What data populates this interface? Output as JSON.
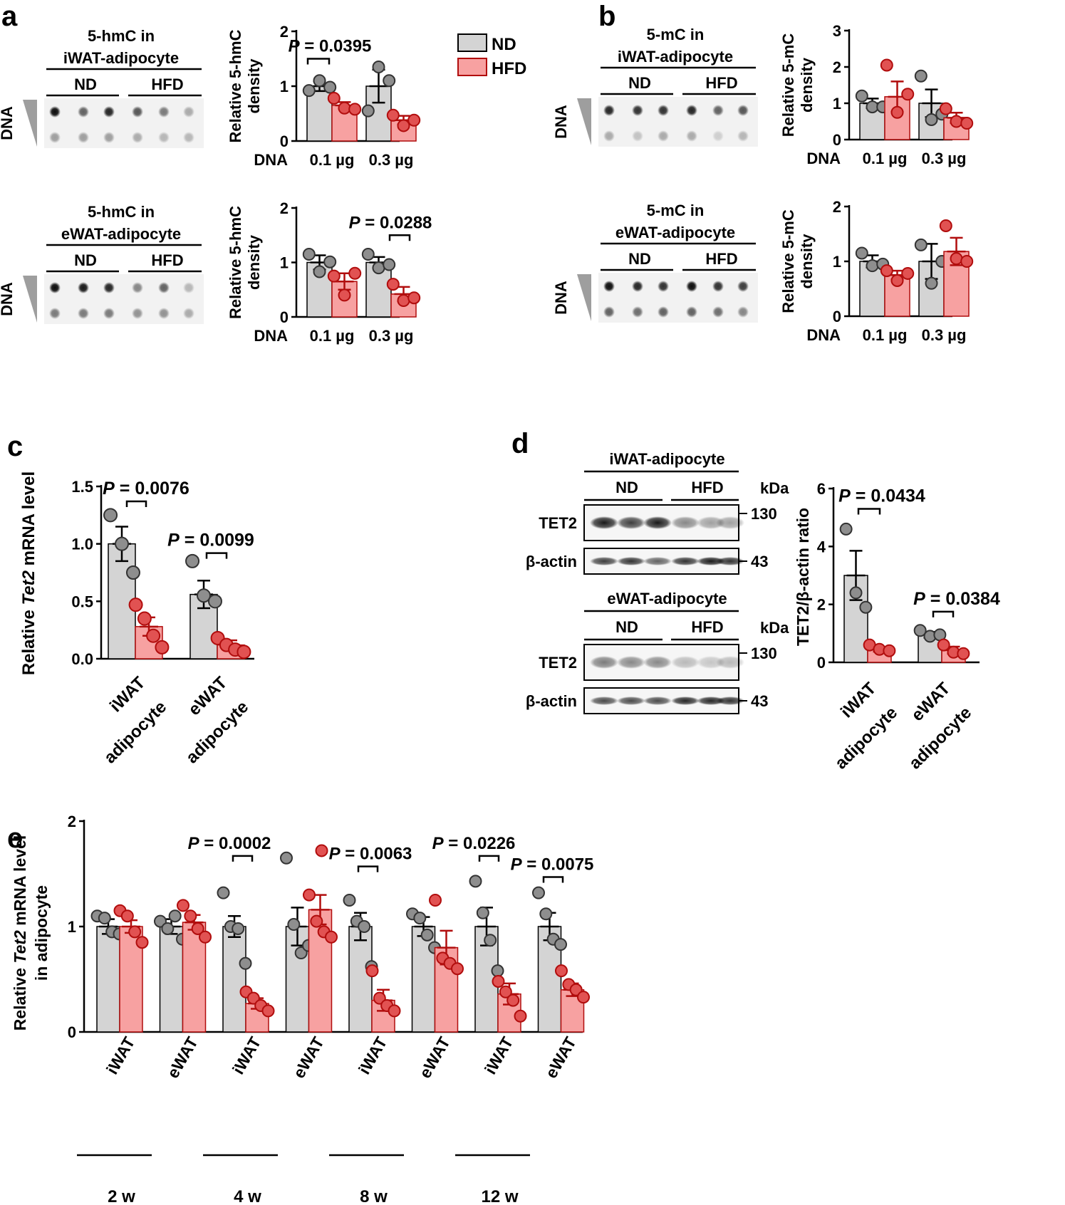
{
  "colors": {
    "nd_fill": "#d4d4d4",
    "nd_point": "#8e8e8e",
    "hfd_fill": "#f7a1a1",
    "hfd_point": "#e15252",
    "hfd_edge": "#b10d0d",
    "axis": "#000000"
  },
  "legend": {
    "nd": "ND",
    "hfd": "HFD"
  },
  "panel_labels": {
    "a": "a",
    "b": "b",
    "c": "c",
    "d": "d",
    "e": "e"
  },
  "blots": {
    "a_top": {
      "title_line1": "5-hmC in",
      "title_line2": "iWAT-adipocyte",
      "group1": "ND",
      "group2": "HFD",
      "side_label": "DNA"
    },
    "a_bottom": {
      "title_line1": "5-hmC in",
      "title_line2": "eWAT-adipocyte",
      "group1": "ND",
      "group2": "HFD",
      "side_label": "DNA"
    },
    "b_top": {
      "title_line1": "5-mC in",
      "title_line2": "iWAT-adipocyte",
      "group1": "ND",
      "group2": "HFD",
      "side_label": "DNA"
    },
    "b_bottom": {
      "title_line1": "5-mC in",
      "title_line2": "eWAT-adipocyte",
      "group1": "ND",
      "group2": "HFD",
      "side_label": "DNA"
    }
  },
  "western": {
    "iwat": {
      "title": "iWAT-adipocyte",
      "group1": "ND",
      "group2": "HFD",
      "kda": "kDa",
      "band1": "TET2",
      "band2": "β-actin",
      "mw1": "130",
      "mw2": "43"
    },
    "ewat": {
      "title": "eWAT-adipocyte",
      "group1": "ND",
      "group2": "HFD",
      "kda": "kDa",
      "band1": "TET2",
      "band2": "β-actin",
      "mw1": "130",
      "mw2": "43"
    }
  },
  "chart_data": [
    {
      "id": "a_top",
      "type": "bar",
      "ylabel_line1": "Relative 5-hmC",
      "ylabel_line2": "density",
      "xprefix": "DNA",
      "categories": [
        "0.1 µg",
        "0.3 µg"
      ],
      "ylim": [
        0,
        2
      ],
      "yticks": [
        "0",
        "1",
        "2"
      ],
      "series": [
        {
          "name": "ND",
          "values": [
            1.0,
            1.0
          ],
          "errors": [
            0.09,
            0.3
          ],
          "points": [
            [
              0.92,
              1.1,
              0.98
            ],
            [
              0.55,
              1.35,
              1.1
            ]
          ]
        },
        {
          "name": "HFD",
          "values": [
            0.65,
            0.38
          ],
          "errors": [
            0.06,
            0.08
          ],
          "points": [
            [
              0.78,
              0.6,
              0.58
            ],
            [
              0.47,
              0.28,
              0.38
            ]
          ]
        }
      ],
      "annotations": [
        {
          "text": "P = 0.0395",
          "category": 0
        }
      ]
    },
    {
      "id": "a_bottom",
      "type": "bar",
      "ylabel_line1": "Relative 5-hmC",
      "ylabel_line2": "density",
      "xprefix": "DNA",
      "categories": [
        "0.1 µg",
        "0.3 µg"
      ],
      "ylim": [
        0,
        2
      ],
      "yticks": [
        "0",
        "1",
        "2"
      ],
      "series": [
        {
          "name": "ND",
          "values": [
            1.0,
            1.0
          ],
          "errors": [
            0.13,
            0.1
          ],
          "points": [
            [
              1.15,
              0.83,
              1.01
            ],
            [
              1.15,
              0.9,
              0.96
            ]
          ]
        },
        {
          "name": "HFD",
          "values": [
            0.65,
            0.42
          ],
          "errors": [
            0.15,
            0.13
          ],
          "points": [
            [
              0.75,
              0.4,
              0.8
            ],
            [
              0.6,
              0.3,
              0.35
            ]
          ]
        }
      ],
      "annotations": [
        {
          "text": "P = 0.0288",
          "category": 1
        }
      ]
    },
    {
      "id": "b_top",
      "type": "bar",
      "ylabel_line1": "Relative 5-mC",
      "ylabel_line2": "density",
      "xprefix": "DNA",
      "categories": [
        "0.1 µg",
        "0.3 µg"
      ],
      "ylim": [
        0,
        3
      ],
      "yticks": [
        "0",
        "1",
        "2",
        "3"
      ],
      "series": [
        {
          "name": "ND",
          "values": [
            1.0,
            1.0
          ],
          "errors": [
            0.13,
            0.38
          ],
          "points": [
            [
              1.2,
              0.9,
              0.9
            ],
            [
              1.75,
              0.55,
              0.7
            ]
          ]
        },
        {
          "name": "HFD",
          "values": [
            1.18,
            0.6
          ],
          "errors": [
            0.42,
            0.14
          ],
          "points": [
            [
              2.05,
              0.75,
              1.25
            ],
            [
              0.85,
              0.5,
              0.45
            ]
          ]
        }
      ],
      "annotations": []
    },
    {
      "id": "b_bottom",
      "type": "bar",
      "ylabel_line1": "Relative 5-mC",
      "ylabel_line2": "density",
      "xprefix": "DNA",
      "categories": [
        "0.1 µg",
        "0.3 µg"
      ],
      "ylim": [
        0,
        2
      ],
      "yticks": [
        "0",
        "1",
        "2"
      ],
      "series": [
        {
          "name": "ND",
          "values": [
            1.0,
            1.0
          ],
          "errors": [
            0.11,
            0.32
          ],
          "points": [
            [
              1.15,
              0.92,
              0.95
            ],
            [
              1.3,
              0.6,
              1.0
            ]
          ]
        },
        {
          "name": "HFD",
          "values": [
            0.75,
            1.18
          ],
          "errors": [
            0.08,
            0.25
          ],
          "points": [
            [
              0.83,
              0.65,
              0.78
            ],
            [
              1.65,
              1.05,
              1.0
            ]
          ]
        }
      ],
      "annotations": []
    },
    {
      "id": "c",
      "type": "bar",
      "ylabel": "Relative Tet2 mRNA level",
      "ylabel_prefix": "Relative ",
      "ylabel_italic": "Tet2",
      "ylabel_suffix": " mRNA level",
      "categories": [
        "iWAT adipocyte",
        "eWAT adipocyte"
      ],
      "category_lines": [
        [
          "iWAT",
          "adipocyte"
        ],
        [
          "eWAT",
          "adipocyte"
        ]
      ],
      "ylim": [
        0,
        1.5
      ],
      "yticks": [
        "0.0",
        "0.5",
        "1.0",
        "1.5"
      ],
      "series": [
        {
          "name": "ND",
          "values": [
            1.0,
            0.56
          ],
          "errors": [
            0.15,
            0.12
          ],
          "points": [
            [
              1.25,
              1.0,
              0.75
            ],
            [
              0.85,
              0.55,
              0.5
            ]
          ]
        },
        {
          "name": "HFD",
          "values": [
            0.28,
            0.12
          ],
          "errors": [
            0.08,
            0.04
          ],
          "points": [
            [
              0.47,
              0.35,
              0.2,
              0.1
            ],
            [
              0.18,
              0.12,
              0.08,
              0.06
            ]
          ]
        }
      ],
      "annotations": [
        {
          "text": "P = 0.0076",
          "category": 0
        },
        {
          "text": "P = 0.0099",
          "category": 1
        }
      ]
    },
    {
      "id": "d",
      "type": "bar",
      "ylabel": "TET2/β-actin ratio",
      "categories": [
        "iWAT adipocyte",
        "eWAT adipocyte"
      ],
      "category_lines": [
        [
          "iWAT",
          "adipocyte"
        ],
        [
          "eWAT",
          "adipocyte"
        ]
      ],
      "ylim": [
        0,
        6
      ],
      "yticks": [
        "0",
        "2",
        "4",
        "6"
      ],
      "series": [
        {
          "name": "ND",
          "values": [
            3.0,
            0.95
          ],
          "errors": [
            0.85,
            0.1
          ],
          "points": [
            [
              4.6,
              2.4,
              1.9
            ],
            [
              1.1,
              0.9,
              0.95
            ]
          ]
        },
        {
          "name": "HFD",
          "values": [
            0.45,
            0.42
          ],
          "errors": [
            0.08,
            0.12
          ],
          "points": [
            [
              0.6,
              0.45,
              0.4
            ],
            [
              0.6,
              0.35,
              0.3
            ]
          ]
        }
      ],
      "annotations": [
        {
          "text": "P = 0.0434",
          "category": 0
        },
        {
          "text": "P = 0.0384",
          "category": 1
        }
      ]
    },
    {
      "id": "e",
      "type": "bar",
      "ylabel_line1": "Relative Tet2 mRNA level",
      "ylabel_line2": "in adipocyte",
      "ylabel_prefix": "Relative ",
      "ylabel_italic": "Tet2",
      "ylabel_suffix": " mRNA level",
      "categories": [
        "iWAT",
        "eWAT",
        "iWAT",
        "eWAT",
        "iWAT",
        "eWAT",
        "iWAT",
        "eWAT"
      ],
      "groups": [
        "2 w",
        "4 w",
        "8 w",
        "12 w"
      ],
      "ylim": [
        0,
        2
      ],
      "yticks": [
        "0",
        "1",
        "2"
      ],
      "series": [
        {
          "name": "ND",
          "values": [
            1.0,
            1.0,
            1.0,
            1.0,
            1.0,
            1.0,
            1.0,
            1.0
          ],
          "errors": [
            0.07,
            0.07,
            0.1,
            0.18,
            0.13,
            0.09,
            0.18,
            0.13
          ],
          "points": [
            [
              1.1,
              1.08,
              0.95,
              0.93
            ],
            [
              1.05,
              0.98,
              1.1,
              0.88
            ],
            [
              1.32,
              1.0,
              0.98,
              0.65
            ],
            [
              1.65,
              1.02,
              0.75,
              0.82
            ],
            [
              1.25,
              1.05,
              1.0,
              0.62
            ],
            [
              1.12,
              1.08,
              0.92,
              0.8
            ],
            [
              1.43,
              1.13,
              0.87,
              0.58
            ],
            [
              1.32,
              1.12,
              0.88,
              0.83
            ]
          ]
        },
        {
          "name": "HFD",
          "values": [
            1.0,
            1.04,
            0.27,
            1.16,
            0.3,
            0.8,
            0.36,
            0.4
          ],
          "errors": [
            0.06,
            0.07,
            0.05,
            0.14,
            0.1,
            0.16,
            0.1,
            0.06
          ],
          "points": [
            [
              1.15,
              1.1,
              0.95,
              0.85
            ],
            [
              1.2,
              1.1,
              0.98,
              0.9
            ],
            [
              0.38,
              0.32,
              0.25,
              0.2
            ],
            [
              1.3,
              1.05,
              0.95,
              0.9
            ],
            [
              0.58,
              0.32,
              0.25,
              0.2
            ],
            [
              1.25,
              0.7,
              0.65,
              0.6
            ],
            [
              0.48,
              0.38,
              0.3,
              0.15
            ],
            [
              0.58,
              0.45,
              0.4,
              0.33
            ]
          ]
        }
      ],
      "annotations": [
        {
          "text": "P = 0.0002",
          "category": 2
        },
        {
          "text": "P = 0.0063",
          "category": 4
        },
        {
          "text": "P = 0.0226",
          "category": 6
        },
        {
          "text": "P = 0.0075",
          "category": 7
        }
      ],
      "outlier_point": {
        "series": "HFD",
        "category": 3,
        "value": 1.72
      }
    }
  ]
}
